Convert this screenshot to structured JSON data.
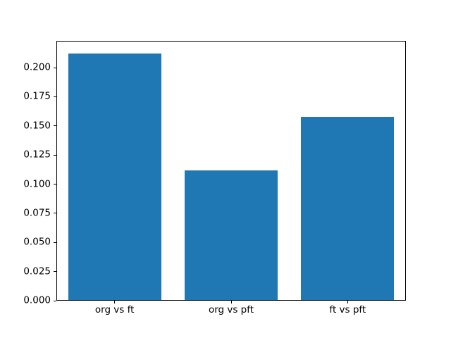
{
  "chart_data": {
    "type": "bar",
    "title": "",
    "xlabel": "",
    "ylabel": "",
    "categories": [
      "org vs ft",
      "org vs pft",
      "ft vs pft"
    ],
    "values": [
      0.212,
      0.112,
      0.158
    ],
    "xlim": [
      -0.5,
      2.5
    ],
    "ylim": [
      0,
      0.223
    ],
    "yticks": [
      0,
      0.025,
      0.05,
      0.075,
      0.1,
      0.125,
      0.15,
      0.175,
      0.2
    ],
    "ytick_labels": [
      "0.000",
      "0.025",
      "0.050",
      "0.075",
      "0.100",
      "0.125",
      "0.150",
      "0.175",
      "0.200"
    ],
    "bar_width_fraction": 0.8,
    "bar_color": "#1f77b4",
    "background_color": "#ffffff",
    "spine_color": "#000000",
    "tick_color": "#000000",
    "text_color": "#000000",
    "grid": false,
    "legend_position": "none"
  }
}
